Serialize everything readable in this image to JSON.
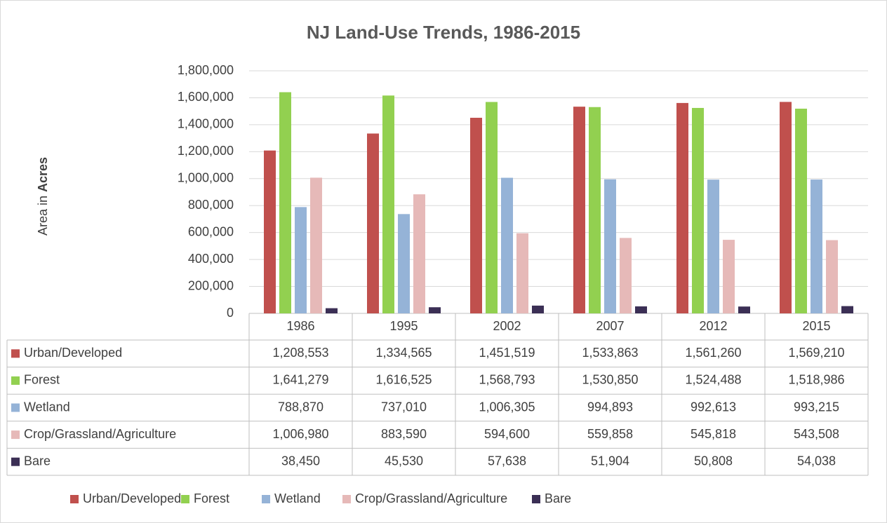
{
  "chart_data": {
    "type": "bar",
    "title": "NJ Land-Use Trends, 1986-2015",
    "y_label_parts": [
      "Area in",
      "Acres"
    ],
    "categories": [
      "1986",
      "1995",
      "2002",
      "2007",
      "2012",
      "2015"
    ],
    "series": [
      {
        "name": "Urban/Developed",
        "color": "#c0504d",
        "values": [
          1208553,
          1334565,
          1451519,
          1533863,
          1561260,
          1569210
        ],
        "value_labels": [
          "1,208,553",
          "1,334,565",
          "1,451,519",
          "1,533,863",
          "1,561,260",
          "1,569,210"
        ]
      },
      {
        "name": "Forest",
        "color": "#92d050",
        "values": [
          1641279,
          1616525,
          1568793,
          1530850,
          1524488,
          1518986
        ],
        "value_labels": [
          "1,641,279",
          "1,616,525",
          "1,568,793",
          "1,530,850",
          "1,524,488",
          "1,518,986"
        ]
      },
      {
        "name": "Wetland",
        "color": "#95b3d7",
        "values": [
          788870,
          737010,
          1006305,
          994893,
          992613,
          993215
        ],
        "value_labels": [
          "788,870",
          "737,010",
          "1,006,305",
          "994,893",
          "992,613",
          "993,215"
        ]
      },
      {
        "name": "Crop/Grassland/Agriculture",
        "color": "#e6b9b8",
        "values": [
          1006980,
          883590,
          594600,
          559858,
          545818,
          543508
        ],
        "value_labels": [
          "1,006,980",
          "883,590",
          "594,600",
          "559,858",
          "545,818",
          "543,508"
        ]
      },
      {
        "name": "Bare",
        "color": "#3b2f55",
        "values": [
          38450,
          45530,
          57638,
          51904,
          50808,
          54038
        ],
        "value_labels": [
          "38,450",
          "45,530",
          "57,638",
          "51,904",
          "50,808",
          "54,038"
        ]
      }
    ],
    "ylim": [
      0,
      1800000
    ],
    "yticks": [
      0,
      {
        "value": 200000,
        "label": "200,000"
      },
      {
        "value": 400000,
        "label": "400,000"
      },
      {
        "value": 600000,
        "label": "600,000"
      },
      {
        "value": 800000,
        "label": "800,000"
      },
      {
        "value": 1000000,
        "label": "1,000,000"
      },
      {
        "value": 1200000,
        "label": "1,200,000"
      },
      {
        "value": 1400000,
        "label": "1,400,000"
      },
      {
        "value": 1600000,
        "label": "1,600,000"
      },
      {
        "value": 1800000,
        "label": "1,800,000"
      }
    ],
    "grid": true,
    "legend": "bottom"
  }
}
